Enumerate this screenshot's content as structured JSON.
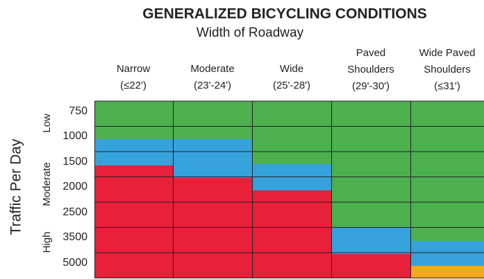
{
  "header": {
    "title": "GENERALIZED BICYCLING CONDITIONS",
    "subtitle": "Width of Roadway"
  },
  "columns": [
    {
      "lines": [
        "Narrow",
        "(≤22')"
      ]
    },
    {
      "lines": [
        "Moderate",
        "(23'-24')"
      ]
    },
    {
      "lines": [
        "Wide",
        "(25'-28')"
      ]
    },
    {
      "lines": [
        "Paved",
        "Shoulders",
        "(29'-30')"
      ]
    },
    {
      "lines": [
        "Wide Paved",
        "Shoulders",
        "(≤31')"
      ]
    }
  ],
  "rows": [
    "750",
    "1000",
    "1500",
    "2000",
    "2500",
    "3500",
    "5000"
  ],
  "y_label": "Traffic Per Day",
  "groups": [
    "Low",
    "Moderate",
    "High"
  ]
}
